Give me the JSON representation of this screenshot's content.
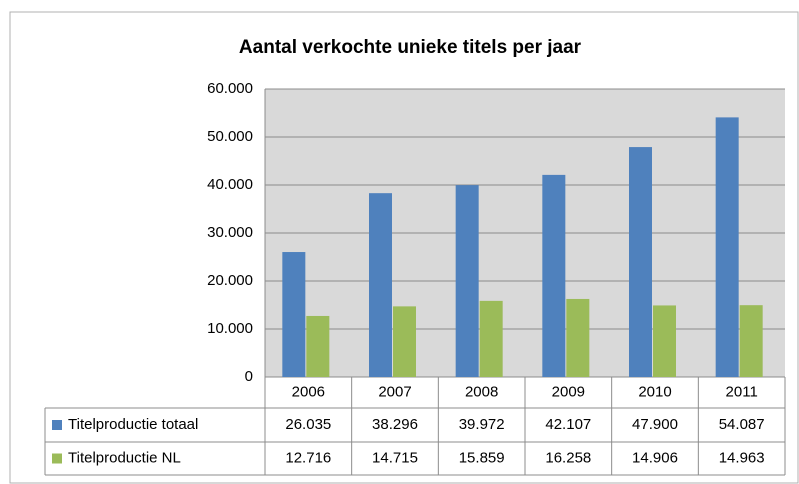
{
  "chart_data": {
    "type": "bar",
    "title": "Aantal verkochte unieke titels per jaar",
    "categories": [
      "2006",
      "2007",
      "2008",
      "2009",
      "2010",
      "2011"
    ],
    "series": [
      {
        "name": "Titelproductie totaal",
        "color": "#4f81bd",
        "values": [
          26035,
          38296,
          39972,
          42107,
          47900,
          54087
        ],
        "value_labels": [
          "26.035",
          "38.296",
          "39.972",
          "42.107",
          "47.900",
          "54.087"
        ]
      },
      {
        "name": "Titelproductie NL",
        "color": "#9bbb59",
        "values": [
          12716,
          14715,
          15859,
          16258,
          14906,
          14963
        ],
        "value_labels": [
          "12.716",
          "14.715",
          "15.859",
          "16.258",
          "14.906",
          "14.963"
        ]
      }
    ],
    "ylim": [
      0,
      60000
    ],
    "yticks": [
      0,
      {
        "value": 10000,
        "label": "10.000"
      },
      {
        "value": 20000,
        "label": "20.000"
      },
      {
        "value": 30000,
        "label": "30.000"
      },
      {
        "value": 40000,
        "label": "40.000"
      },
      {
        "value": 50000,
        "label": "50.000"
      },
      {
        "value": 60000,
        "label": "60.000"
      }
    ],
    "grid": true
  }
}
